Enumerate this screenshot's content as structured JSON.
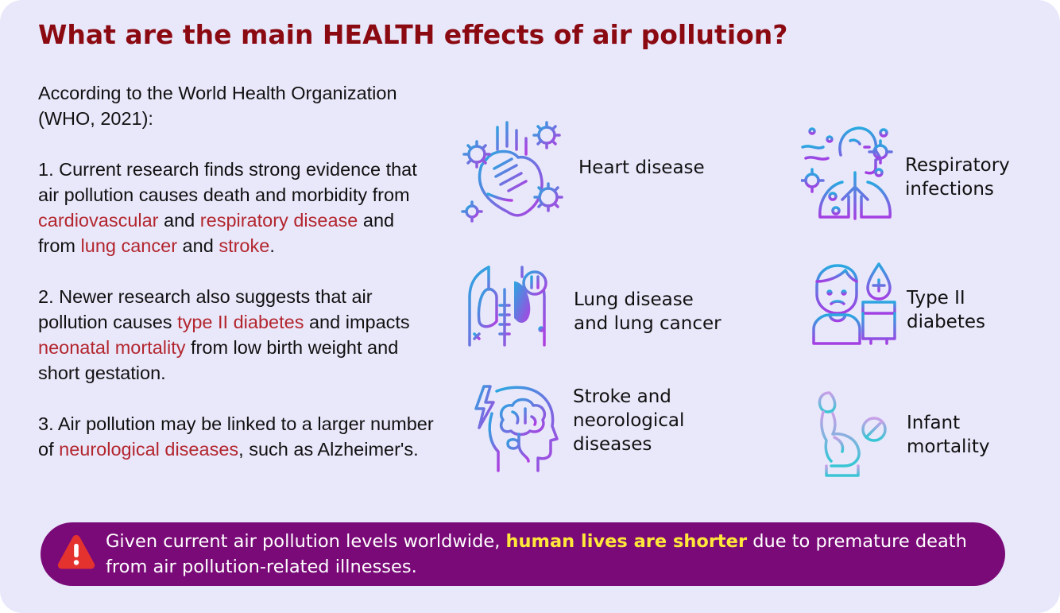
{
  "title": "What are the main HEALTH effects of air pollution?",
  "intro": {
    "line1": "According to the World Health Organization",
    "line2": "(WHO, 2021):"
  },
  "point1": {
    "t1": "1. Current research finds strong evidence that air pollution causes death and morbidity from ",
    "cardiovascular": "cardiovascular",
    "t2": " and ",
    "respiratory": "respiratory disease",
    "t3": " and from ",
    "lung_cancer": "lung cancer",
    "t4": " and ",
    "stroke": "stroke",
    "t5": "."
  },
  "point2": {
    "t1": "2. Newer research also suggests that air pollution causes ",
    "diabetes": "type II diabetes",
    "t2": " and impacts ",
    "neonatal": "neonatal mortality",
    "t3": " from low birth weight and short gestation."
  },
  "point3": {
    "t1": "3. Air pollution may be linked to a larger number of ",
    "neuro": "neurological diseases",
    "t2": ", such as Alzheimer's."
  },
  "effects": {
    "heart": {
      "lines": [
        "Heart disease"
      ],
      "icon": "heart-virus-icon"
    },
    "respiratory": {
      "lines": [
        "Respiratory",
        "infections"
      ],
      "icon": "respiratory-infection-icon"
    },
    "lung": {
      "lines": [
        "Lung disease",
        "and lung cancer"
      ],
      "icon": "lung-cancer-icon"
    },
    "diabetes": {
      "lines": [
        "Type II",
        "diabetes"
      ],
      "icon": "diabetes-icon"
    },
    "stroke": {
      "lines": [
        "Stroke and",
        "neorological",
        "diseases"
      ],
      "icon": "brain-stroke-icon"
    },
    "infant": {
      "lines": [
        "Infant",
        "mortality"
      ],
      "icon": "pregnancy-mortality-icon"
    }
  },
  "banner": {
    "icon": "warning-icon",
    "t1": "Given current air pollution levels worldwide, ",
    "highlight": "human lives are shorter",
    "t2": " due to premature death from air pollution-related illnesses."
  },
  "colors": {
    "background": "#e9e8fb",
    "title": "#8b0a12",
    "accent_red": "#b3262e",
    "banner": "#7a0a78",
    "banner_highlight": "#ffe83a",
    "warning": "#e4322f"
  }
}
